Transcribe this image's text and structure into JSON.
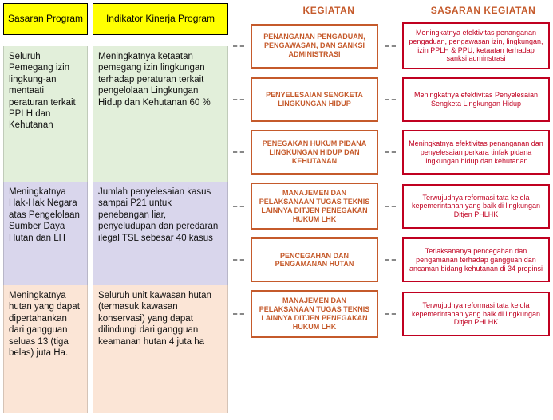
{
  "left": {
    "header": "Sasaran Program",
    "row1": "Seluruh Pemegang izin lingkung-an mentaati peraturan terkait PPLH dan Kehutanan",
    "row2": "Meningkatnya Hak-Hak Negara atas Pengelolaan Sumber Daya Hutan dan LH",
    "row3": "Meningkatnya hutan yang dapat dipertahankan dari gangguan seluas 13 (tiga belas) juta Ha."
  },
  "mid": {
    "header": "Indikator Kinerja Program",
    "row1": "Meningkatnya ketaatan pemegang izin lingkungan terhadap peraturan terkait pengelolaan Lingkungan Hidup dan Kehutanan 60  %",
    "row2": "Jumlah penyelesaian kasus sampai P21 untuk penebangan liar, penyeludupan dan peredaran ilegal TSL sebesar 40 kasus",
    "row3": "Seluruh unit kawasan hutan (termasuk kawasan konservasi) yang dapat dilindungi dari gangguan keamanan hutan 4 juta ha"
  },
  "right": {
    "header_kegiatan": "KEGIATAN",
    "header_sasaran": "SASARAN KEGIATAN",
    "pairs": [
      {
        "keg": "PENANGANAN PENGADUAN, PENGAWASAN, DAN SANKSI ADMINISTRASI",
        "sas": "Meningkatnya efektivitas penanganan pengaduan, pengawasan izin, lingkungan, izin PPLH & PPU, ketaatan terhadap sanksi adminstrasi"
      },
      {
        "keg": "PENYELESAIAN SENGKETA LINGKUNGAN HIDUP",
        "sas": "Meningkatnya efektivitas Penyelesaian Sengketa Lingkungan Hidup"
      },
      {
        "keg": "PENEGAKAN HUKUM PIDANA LINGKUNGAN HIDUP DAN KEHUTANAN",
        "sas": "Meningkatnya efektivitas penanganan dan penyelesaian perkara tinfak pidana lingkungan hidup dan kehutanan"
      },
      {
        "keg": "MANAJEMEN DAN PELAKSANAAN TUGAS TEKNIS LAINNYA DITJEN PENEGAKAN HUKUM LHK",
        "sas": "Terwujudnya reformasi tata kelola kepemerintahan yang baik di lingkungan Ditjen PHLHK"
      },
      {
        "keg": "PENCEGAHAN DAN PENGAMANAN HUTAN",
        "sas": "Terlaksananya pencegahan dan pengamanan terhadap gangguan dan ancaman bidang kehutanan di 34 propinsi"
      },
      {
        "keg": "MANAJEMEN DAN PELAKSANAAN TUGAS TEKNIS LAINNYA DITJEN PENEGAKAN HUKUM LHK",
        "sas": "Terwujudnya reformasi tata kelola kepemerintahan yang baik di lingkungan Ditjen PHLHK"
      }
    ]
  },
  "colors": {
    "yellow": "#ffff00",
    "row1_bg": "#e2efda",
    "row2_bg": "#d9d6ec",
    "row3_bg": "#fbe5d6",
    "keg_border": "#c55a2b",
    "sas_border": "#c00020"
  }
}
